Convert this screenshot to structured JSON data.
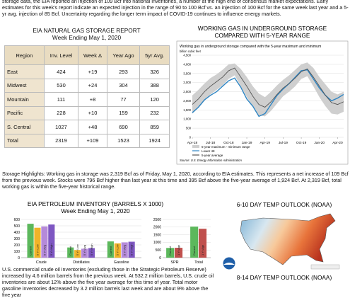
{
  "intro": "storage data, the EIA reported an injection of 109 Bcf into national inventories, a number at the high end of consensus market expectations. Early estimates for this week's report indicate an expected injection in the range of 90 to 100 Bcf vs. an injection of 100 Bcf for the same week last year and a 5-yr avg. injection of 85 Bcf. Uncertainty regarding the longer term impact of COVID-19 continues to influence energy markets.",
  "storage_report": {
    "title": "EIA NATURAL GAS STORAGE REPORT",
    "subtitle": "Week Ending May 1, 2020",
    "header": [
      "Region",
      "Inv. Level",
      "Week Δ",
      "Year Ago",
      "5yr Avg."
    ],
    "rows": [
      [
        "East",
        "424",
        "+19",
        "293",
        "326"
      ],
      [
        "Midwest",
        "530",
        "+24",
        "304",
        "388"
      ],
      [
        "Mountain",
        "111",
        "+8",
        "77",
        "120"
      ],
      [
        "Pacific",
        "228",
        "+10",
        "159",
        "232"
      ],
      [
        "S. Central",
        "1027",
        "+48",
        "690",
        "859"
      ],
      [
        "Total",
        "2319",
        "+109",
        "1523",
        "1924"
      ]
    ]
  },
  "highlights": "Storage Highlights: Working gas in storage was 2,319 Bcf as of Friday, May 1, 2020, according to EIA estimates. This represents a net increase of 109 Bcf from the previous week. Stocks were 796 Bcf higher than last year at this time and 395 Bcf above the five-year average of 1,924 Bcf. At 2,319 Bcf, total working gas is within the five-year historical range.",
  "petroleum_text": "U.S. commercial crude oil inventories (excluding those in the Strategic Petroleum Reserve) increased by 4.6 million barrels from the previous week. At 532.2 million barrels, U.S. crude oil inventories are about 12% above the five year average for this time of year. Total motor gasoline inventories decreased by 3.2 million barrels last week and are about 9% above the five year",
  "outlook_6_10": "6-10 DAY TEMP OUTLOOK (NOAA)",
  "outlook_8_14": "8-14 DAY TEMP OUTLOOK (NOAA)",
  "chart_data": [
    {
      "type": "line",
      "title": "WORKING GAS IN UNDERGROUND STORAGE",
      "subtitle": "COMPARED WITH 5-YEAR RANGE",
      "plot_title": "Working gas in underground  storage compared with the 5-year maximum and minimum",
      "y_label": "billion cubic feet",
      "source": "Source: U.S. Energy Information Administration",
      "categories": [
        "Apr-18",
        null,
        null,
        "Jul-18",
        null,
        null,
        "Oct-18",
        null,
        null,
        "Jan-19",
        null,
        null,
        "Apr-19",
        null,
        null,
        "Jul-19",
        null,
        null,
        "Oct-19",
        null,
        null,
        "Jan-20",
        null,
        null,
        "Apr-20",
        null
      ],
      "ylim": [
        0,
        4500
      ],
      "yticks": [
        0,
        500,
        {
          "value": 1000,
          "label": "1,000"
        },
        {
          "value": 1500,
          "label": "1,500"
        },
        {
          "value": 2000,
          "label": "2,000"
        },
        {
          "value": 2500,
          "label": "2,500"
        },
        {
          "value": 3000,
          "label": "3,000"
        },
        {
          "value": 3500,
          "label": "3,500"
        },
        {
          "value": 4000,
          "label": "4,000"
        },
        {
          "value": 4500,
          "label": "4,500"
        }
      ],
      "grid": true,
      "range": {
        "name": "5-year maximum - minimum range",
        "color": "#cfcfcf",
        "max": [
          2300,
          2600,
          2950,
          3250,
          3450,
          3700,
          4000,
          4050,
          3750,
          3300,
          2800,
          2400,
          2200,
          2500,
          2850,
          3150,
          3400,
          3700,
          4000,
          4100,
          3800,
          3300,
          2900,
          2500,
          2350,
          2500
        ],
        "min": [
          1300,
          1600,
          2000,
          2350,
          2600,
          2850,
          3200,
          3400,
          2800,
          2200,
          1700,
          1200,
          1150,
          1450,
          1850,
          2250,
          2500,
          2800,
          3200,
          3350,
          2800,
          2200,
          1700,
          1300,
          1250,
          1400
        ]
      },
      "series": [
        {
          "name": "Lower 48",
          "color": "#2f86c4",
          "values": [
            1350,
            1650,
            2050,
            2300,
            2500,
            2800,
            3100,
            3250,
            2750,
            2100,
            1700,
            1150,
            1300,
            1800,
            2300,
            2650,
            2950,
            3300,
            3650,
            3700,
            3200,
            2700,
            2300,
            2000,
            2150,
            2350
          ]
        },
        {
          "name": "5-year average",
          "color": "#555555",
          "values": [
            1800,
            2100,
            2500,
            2800,
            3050,
            3300,
            3650,
            3800,
            3300,
            2800,
            2250,
            1800,
            1650,
            1950,
            2350,
            2700,
            2950,
            3250,
            3600,
            3750,
            3300,
            2800,
            2300,
            1900,
            1800,
            1950
          ]
        }
      ]
    },
    {
      "type": "bar",
      "title": "EIA PETROLEUM INVENTORY (BARRELS X 1000)",
      "subtitle": "Week Ending May 1, 2020",
      "categories": [
        "Crude",
        "Distillates",
        "Gasoline"
      ],
      "ylim": [
        0,
        600
      ],
      "yticks": [
        0,
        100,
        200,
        300,
        400,
        500,
        600
      ],
      "grid": true,
      "series": [
        {
          "name": "Current",
          "color": "#5cb85c",
          "values": [
            532,
            160,
            255
          ]
        },
        {
          "name": "5 Yr Low",
          "color": "#f0b429",
          "values": [
            470,
            120,
            225
          ]
        },
        {
          "name": "5 Yr Avg",
          "color": "#b58ad9",
          "values": [
            490,
            140,
            240
          ]
        },
        {
          "name": "5 Yr High",
          "color": "#7e57c2",
          "values": [
            520,
            150,
            250
          ]
        }
      ]
    },
    {
      "type": "bar",
      "categories": [
        "SPR",
        "Total"
      ],
      "ylim": [
        0,
        2500
      ],
      "yticks": [
        0,
        500,
        1000,
        1500,
        2000,
        2500
      ],
      "grid": true,
      "series": [
        {
          "name": "Current",
          "color": "#5cb85c",
          "values": [
            635,
            2030
          ]
        },
        {
          "name": "1 Yr Ago",
          "color": "#c0504d",
          "values": [
            645,
            1890
          ]
        }
      ]
    }
  ]
}
